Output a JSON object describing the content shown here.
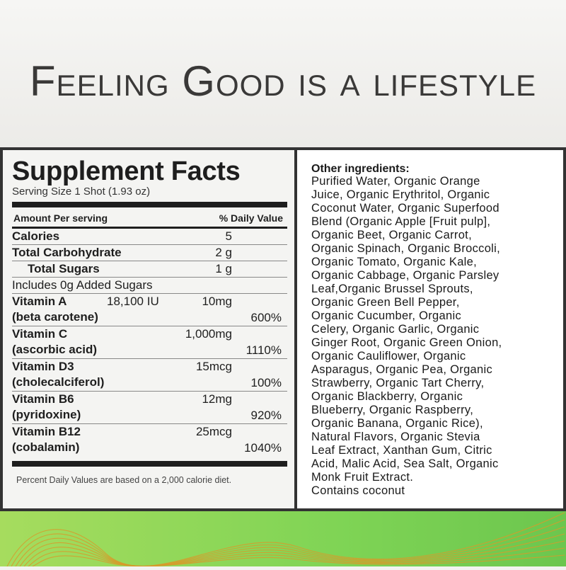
{
  "headline": "Feeling Good is a lifestyle",
  "facts": {
    "title": "Supplement Facts",
    "serving": "Serving Size 1 Shot (1.93 oz)",
    "amount_header": "Amount Per serving",
    "dv_header": "% Daily Value",
    "rows": [
      {
        "name": "Calories",
        "amount": "5"
      },
      {
        "name": "Total Carbohydrate",
        "amount": "2 g"
      },
      {
        "name": "Total Sugars",
        "amount": "1 g"
      },
      {
        "name": "Includes 0g Added Sugars"
      },
      {
        "name": "Vitamin A",
        "sub": "(beta carotene)",
        "extra": "18,100 IU",
        "amount": "10mg",
        "dv": "600%"
      },
      {
        "name": "Vitamin C",
        "sub": "(ascorbic acid)",
        "amount": "1,000mg",
        "dv": "1110%"
      },
      {
        "name": "Vitamin D3",
        "sub": "(cholecalciferol)",
        "amount": "15mcg",
        "dv": "100%"
      },
      {
        "name": "Vitamin B6",
        "sub": "(pyridoxine)",
        "amount": "12mg",
        "dv": "920%"
      },
      {
        "name": "Vitamin B12",
        "sub": "(cobalamin)",
        "amount": "25mcg",
        "dv": "1040%"
      }
    ],
    "footnote": "Percent Daily Values are based on a 2,000 calorie diet."
  },
  "ingredients": {
    "title": "Other ingredients:",
    "lines": [
      "Purified Water, Organic Orange",
      "Juice, Organic Erythritol, Organic",
      "Coconut Water, Organic Superfood",
      "Blend (Organic Apple [Fruit pulp],",
      "Organic Beet, Organic Carrot,",
      "Organic Spinach, Organic Broccoli,",
      "Organic Tomato, Organic Kale,",
      "Organic Cabbage, Organic Parsley",
      "Leaf,Organic Brussel Sprouts,",
      "Organic Green Bell Pepper,",
      "Organic Cucumber, Organic",
      "Celery, Organic Garlic, Organic",
      "Ginger Root, Organic Green Onion,",
      "Organic Cauliflower, Organic",
      "Asparagus, Organic Pea, Organic",
      "Strawberry, Organic Tart Cherry,",
      "Organic Blackberry, Organic",
      "Blueberry, Organic Raspberry,",
      "Organic Banana, Organic Rice),",
      "Natural Flavors, Organic Stevia",
      "Leaf Extract, Xanthan Gum, Citric",
      "Acid, Malic Acid, Sea Salt, Organic",
      "Monk Fruit Extract.",
      "Contains coconut"
    ]
  },
  "colors": {
    "frame": "#333333",
    "green_start": "#a6dc5e",
    "green_end": "#6cc64e",
    "wave": "#d89a2a"
  }
}
